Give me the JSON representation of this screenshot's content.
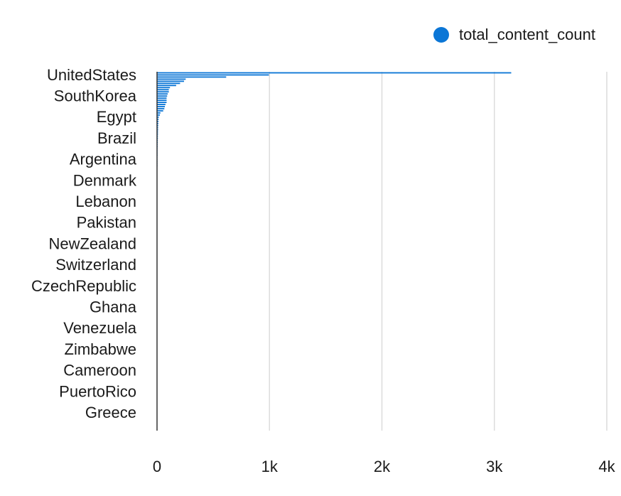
{
  "chart_data": {
    "type": "bar",
    "orientation": "horizontal",
    "series": [
      {
        "name": "total_content_count",
        "color": "#0b76d6",
        "values": [
          3150,
          995,
          615,
          255,
          240,
          205,
          170,
          115,
          105,
          105,
          95,
          90,
          85,
          85,
          85,
          75,
          70,
          65,
          55,
          30,
          25,
          16,
          14,
          13,
          12,
          11,
          10,
          10,
          9,
          9,
          8,
          8,
          7,
          7,
          6,
          6,
          5,
          5,
          5,
          5,
          4,
          4,
          4,
          4,
          4,
          3,
          3,
          3,
          3,
          3,
          3,
          3,
          2,
          2,
          2,
          2,
          2,
          2,
          2,
          2,
          2,
          2,
          2,
          2,
          1,
          1,
          1,
          1,
          1,
          1,
          1,
          1,
          1,
          1,
          1,
          1,
          1,
          1,
          1,
          1,
          1,
          1,
          1,
          1,
          1,
          1,
          1,
          1,
          1,
          1,
          1,
          1,
          1,
          1,
          1,
          1,
          1,
          1,
          1,
          1,
          1,
          1,
          1,
          1,
          1,
          1,
          1,
          1,
          1,
          1,
          1,
          1,
          1,
          1,
          1,
          1,
          1,
          1,
          1,
          1,
          1,
          1,
          1,
          1,
          1,
          1,
          1,
          1,
          1,
          1,
          1,
          1,
          1,
          1,
          1,
          1,
          1,
          1,
          1,
          1,
          1,
          1,
          1,
          1,
          1,
          1,
          1,
          1,
          1,
          1,
          1,
          1,
          1,
          1,
          1,
          1,
          1,
          1,
          1,
          1,
          1,
          1,
          1,
          1,
          1,
          1,
          1,
          1,
          1,
          1
        ]
      }
    ],
    "category_labels": [
      "UnitedStates",
      "SouthKorea",
      "Egypt",
      "Brazil",
      "Argentina",
      "Denmark",
      "Lebanon",
      "Pakistan",
      "NewZealand",
      "Switzerland",
      "CzechRepublic",
      "Ghana",
      "Venezuela",
      "Zimbabwe",
      "Cameroon",
      "PuertoRico",
      "Greece"
    ],
    "xaxis": {
      "ticks": [
        0,
        1000,
        2000,
        3000,
        4000
      ],
      "tick_labels": [
        "0",
        "1k",
        "2k",
        "3k",
        "4k"
      ],
      "range": [
        0,
        4000
      ]
    },
    "grid": true,
    "legend_position": "top-right",
    "title": "",
    "xlabel": "",
    "ylabel": ""
  }
}
